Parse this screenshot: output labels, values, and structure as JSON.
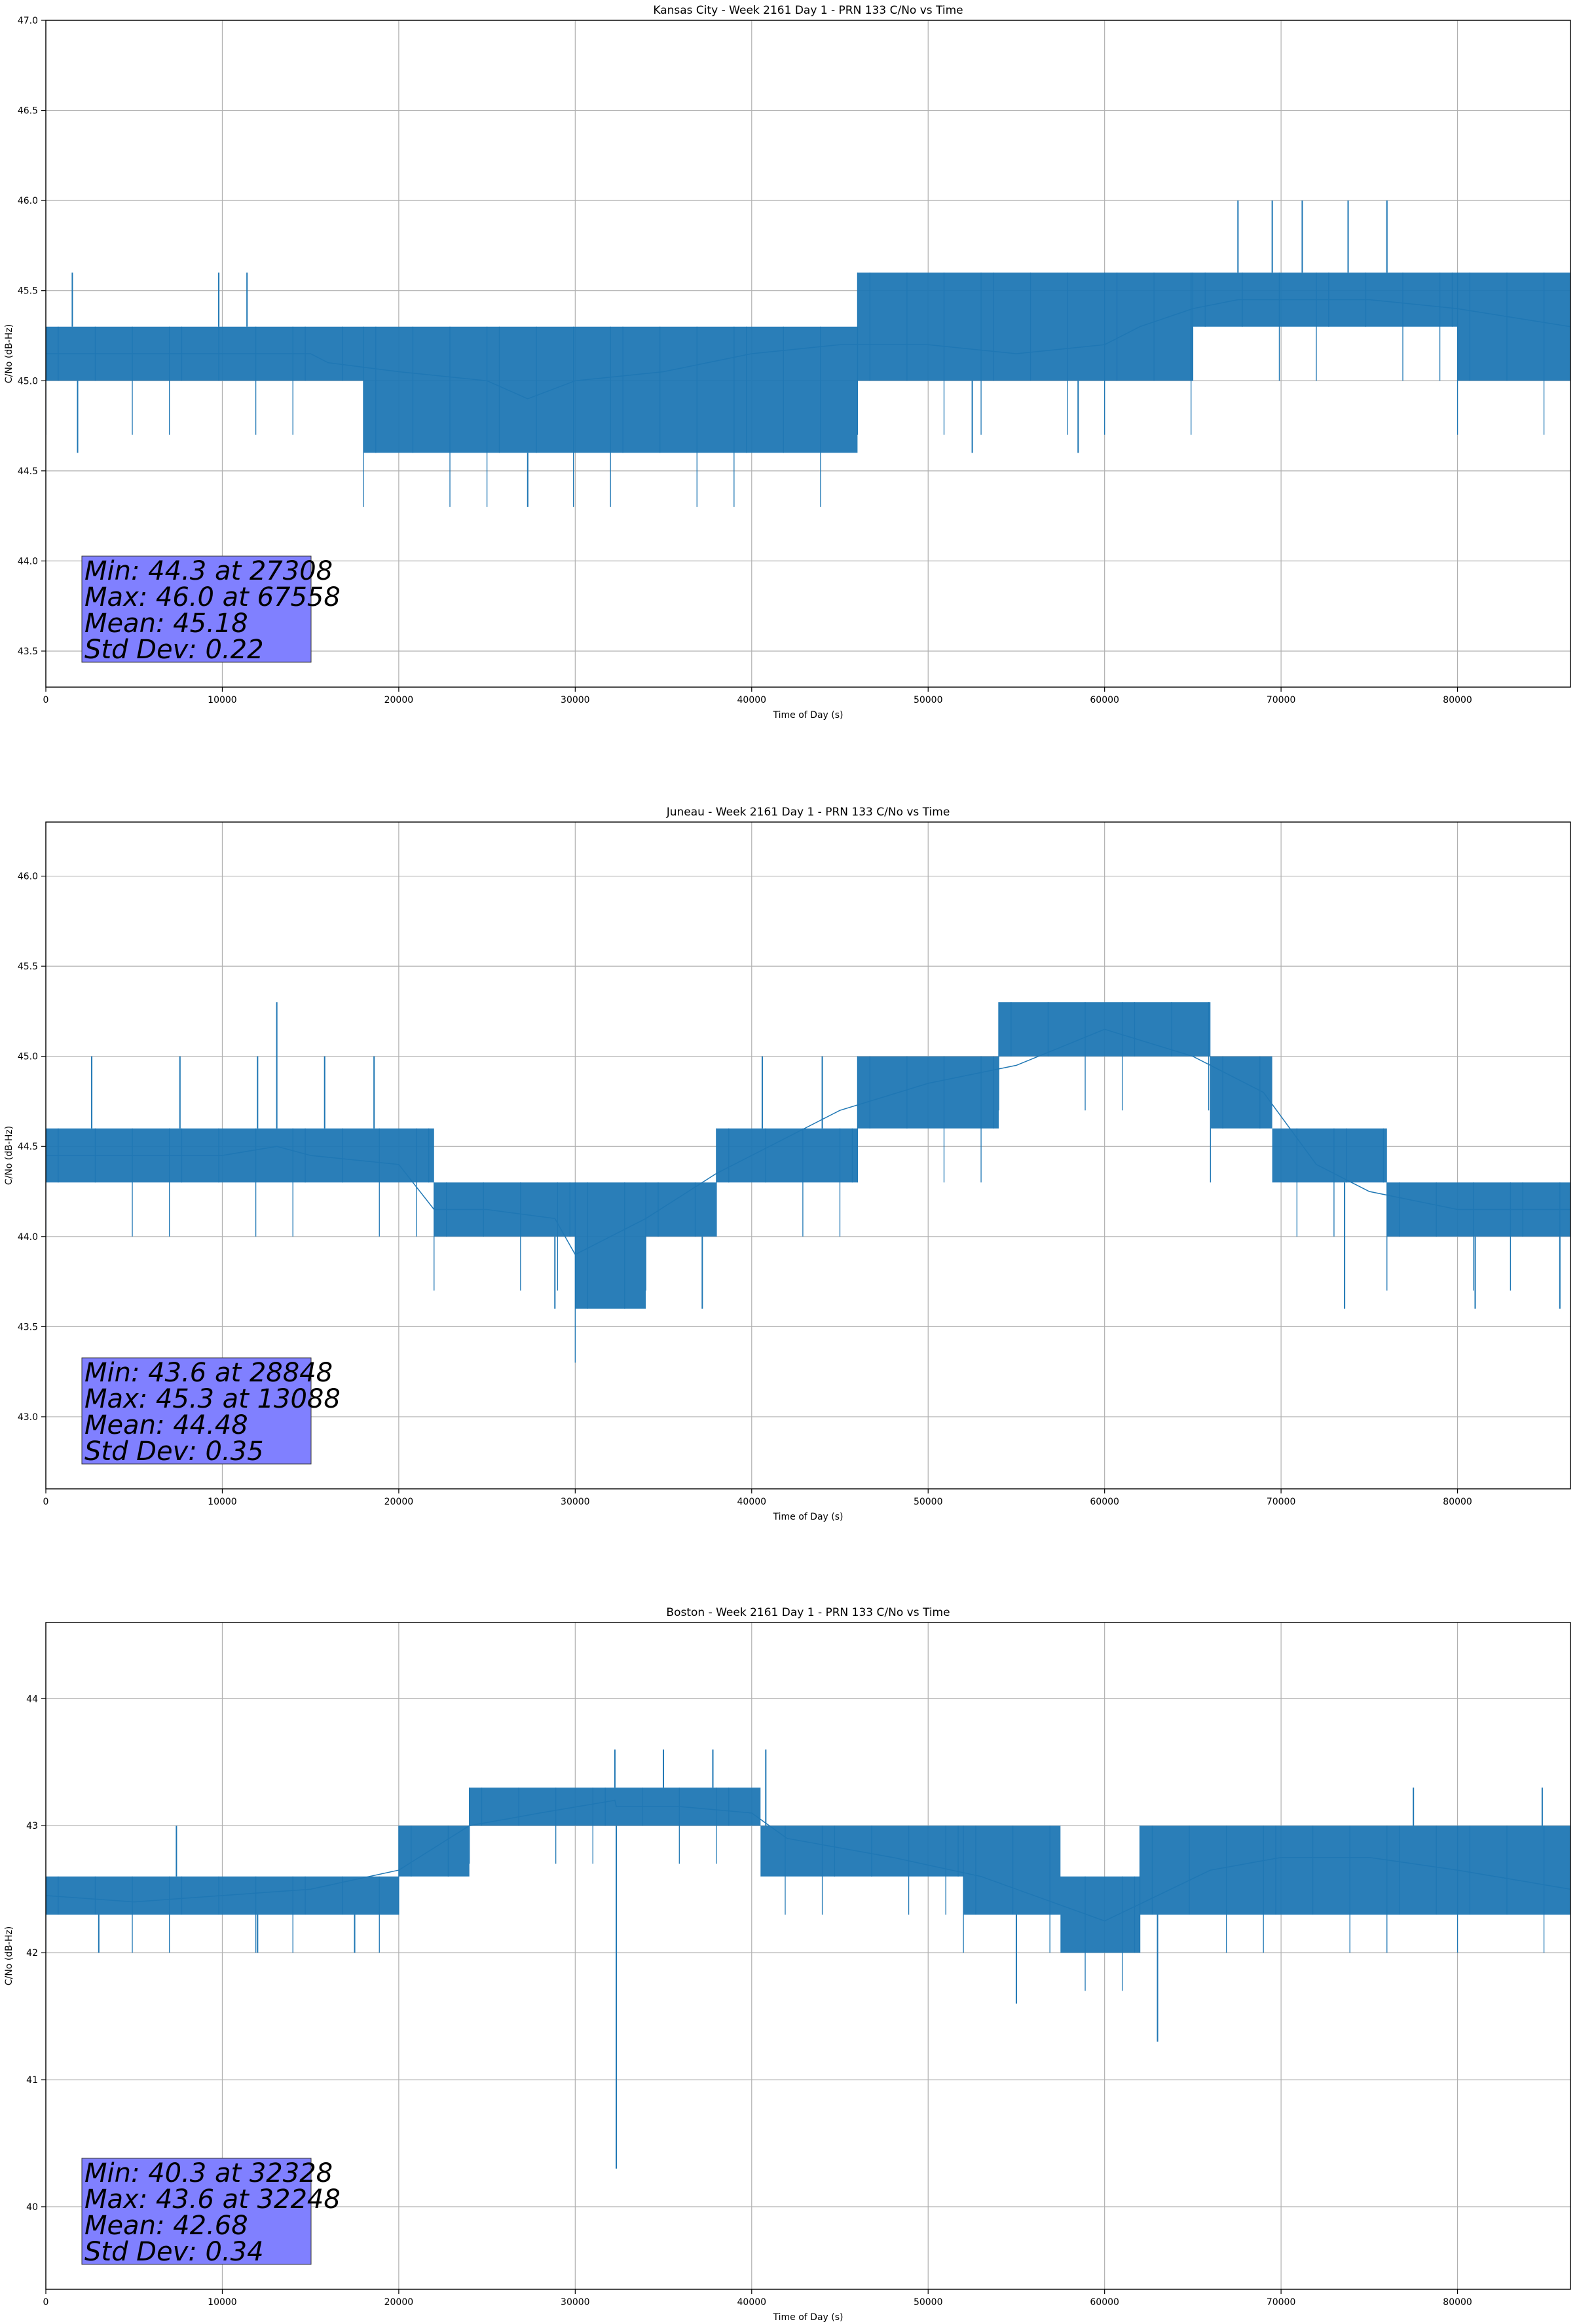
{
  "chart_data": [
    {
      "type": "line",
      "title": "Kansas City - Week 2161 Day 1 - PRN 133 C/No vs Time",
      "xlabel": "Time of Day (s)",
      "ylabel": "C/No (dB-Hz)",
      "xlim": [
        0,
        86400
      ],
      "ylim": [
        43.3,
        47.0
      ],
      "xticks": [
        0,
        10000,
        20000,
        30000,
        40000,
        50000,
        60000,
        70000,
        80000
      ],
      "yticks": [
        43.5,
        44.0,
        44.5,
        45.0,
        45.5,
        46.0,
        46.5,
        47.0
      ],
      "ytick_decimals": 1,
      "grid": true,
      "series_color": "#1f77b4",
      "series": [
        {
          "x": [
            0,
            2000,
            4000,
            8000,
            15000,
            16000,
            20000,
            25000,
            27308,
            30000,
            35000,
            40000,
            45000,
            47000,
            50000,
            55000,
            60000,
            62000,
            65000,
            67558,
            70000,
            75000,
            80000,
            86400
          ],
          "y": [
            45.15,
            45.15,
            45.15,
            45.15,
            45.15,
            45.1,
            45.05,
            45.0,
            44.9,
            45.0,
            45.05,
            45.15,
            45.2,
            45.2,
            45.2,
            45.15,
            45.2,
            45.3,
            45.4,
            45.45,
            45.45,
            45.45,
            45.4,
            45.3
          ],
          "band": [
            [
              0,
              45.0,
              45.3
            ],
            [
              18000,
              44.6,
              45.3
            ],
            [
              46000,
              45.0,
              45.6
            ],
            [
              65000,
              45.3,
              45.6
            ],
            [
              80000,
              45.0,
              45.6
            ],
            [
              86400,
              45.0,
              45.3
            ]
          ],
          "spikes": [
            [
              1500,
              45.6
            ],
            [
              1800,
              44.6
            ],
            [
              9800,
              45.6
            ],
            [
              11400,
              45.6
            ],
            [
              27308,
              44.3
            ],
            [
              67558,
              46.0
            ],
            [
              69500,
              46.0
            ],
            [
              71200,
              46.0
            ],
            [
              73800,
              46.0
            ],
            [
              76000,
              46.0
            ],
            [
              52500,
              44.6
            ],
            [
              58500,
              44.6
            ]
          ]
        }
      ],
      "stats": [
        "Min: 44.3 at 27308",
        "Max: 46.0 at 67558",
        "Mean: 45.18",
        "Std Dev: 0.22"
      ]
    },
    {
      "type": "line",
      "title": "Juneau - Week 2161 Day 1 - PRN 133 C/No vs Time",
      "xlabel": "Time of Day (s)",
      "ylabel": "C/No (dB-Hz)",
      "xlim": [
        0,
        86400
      ],
      "ylim": [
        42.6,
        46.3
      ],
      "xticks": [
        0,
        10000,
        20000,
        30000,
        40000,
        50000,
        60000,
        70000,
        80000
      ],
      "yticks": [
        43.0,
        43.5,
        44.0,
        44.5,
        45.0,
        45.5,
        46.0
      ],
      "ytick_decimals": 1,
      "grid": true,
      "series_color": "#1f77b4",
      "series": [
        {
          "x": [
            0,
            5000,
            10000,
            13088,
            15000,
            20000,
            22000,
            25000,
            28848,
            30000,
            34000,
            38000,
            40000,
            45000,
            50000,
            55000,
            60000,
            65000,
            69000,
            72000,
            75000,
            80000,
            86400
          ],
          "y": [
            44.45,
            44.45,
            44.45,
            44.5,
            44.45,
            44.4,
            44.15,
            44.15,
            44.1,
            43.9,
            44.1,
            44.35,
            44.45,
            44.7,
            44.85,
            44.95,
            45.15,
            45.0,
            44.8,
            44.4,
            44.25,
            44.15,
            44.15
          ],
          "band": [
            [
              0,
              44.3,
              44.6
            ],
            [
              22000,
              44.0,
              44.3
            ],
            [
              30000,
              43.6,
              44.3
            ],
            [
              34000,
              44.0,
              44.3
            ],
            [
              38000,
              44.3,
              44.6
            ],
            [
              46000,
              44.6,
              45.0
            ],
            [
              54000,
              45.0,
              45.3
            ],
            [
              66000,
              44.6,
              45.0
            ],
            [
              69500,
              44.3,
              44.6
            ],
            [
              76000,
              44.0,
              44.3
            ],
            [
              86400,
              44.0,
              44.3
            ]
          ],
          "spikes": [
            [
              13088,
              45.3
            ],
            [
              2600,
              45.0
            ],
            [
              7600,
              45.0
            ],
            [
              12000,
              45.0
            ],
            [
              15800,
              45.0
            ],
            [
              18600,
              45.0
            ],
            [
              28848,
              43.6
            ],
            [
              37200,
              43.6
            ],
            [
              73600,
              43.6
            ],
            [
              81000,
              43.6
            ],
            [
              85800,
              43.6
            ],
            [
              40600,
              45.0
            ],
            [
              44000,
              45.0
            ]
          ]
        }
      ],
      "stats": [
        "Min: 43.6 at 28848",
        "Max: 45.3 at 13088",
        "Mean: 44.48",
        "Std Dev: 0.35"
      ]
    },
    {
      "type": "line",
      "title": "Boston - Week 2161 Day 1 - PRN 133 C/No vs Time",
      "xlabel": "Time of Day (s)",
      "ylabel": "C/No (dB-Hz)",
      "xlim": [
        0,
        86400
      ],
      "ylim": [
        39.35,
        44.6
      ],
      "xticks": [
        0,
        10000,
        20000,
        30000,
        40000,
        50000,
        60000,
        70000,
        80000
      ],
      "yticks": [
        40,
        41,
        42,
        43,
        44
      ],
      "ytick_decimals": 0,
      "grid": true,
      "series_color": "#1f77b4",
      "series": [
        {
          "x": [
            0,
            5000,
            10000,
            15000,
            20000,
            24000,
            28000,
            32248,
            32328,
            36000,
            40000,
            42000,
            48000,
            53000,
            57000,
            60000,
            63000,
            66000,
            70000,
            75000,
            80000,
            86400
          ],
          "y": [
            42.45,
            42.4,
            42.45,
            42.5,
            42.65,
            43.0,
            43.1,
            43.2,
            43.15,
            43.15,
            43.1,
            42.9,
            42.75,
            42.6,
            42.4,
            42.25,
            42.45,
            42.65,
            42.75,
            42.75,
            42.65,
            42.5
          ],
          "band": [
            [
              0,
              42.3,
              42.6
            ],
            [
              20000,
              42.6,
              43.0
            ],
            [
              24000,
              43.0,
              43.3
            ],
            [
              40500,
              42.6,
              43.0
            ],
            [
              52000,
              42.3,
              43.0
            ],
            [
              57500,
              42.0,
              42.6
            ],
            [
              62000,
              42.3,
              43.0
            ],
            [
              80000,
              42.3,
              43.0
            ],
            [
              86400,
              42.3,
              42.6
            ]
          ],
          "spikes": [
            [
              32328,
              40.3
            ],
            [
              32248,
              43.6
            ],
            [
              35000,
              43.6
            ],
            [
              37800,
              43.6
            ],
            [
              40800,
              43.6
            ],
            [
              63000,
              41.3
            ],
            [
              55000,
              41.6
            ],
            [
              7400,
              43.0
            ],
            [
              3000,
              42.0
            ],
            [
              12000,
              42.0
            ],
            [
              17500,
              42.0
            ],
            [
              77500,
              43.3
            ],
            [
              84800,
              43.3
            ]
          ]
        }
      ],
      "stats": [
        "Min: 40.3 at 32328",
        "Max: 43.6 at 32248",
        "Mean: 42.68",
        "Std Dev: 0.34"
      ]
    }
  ]
}
